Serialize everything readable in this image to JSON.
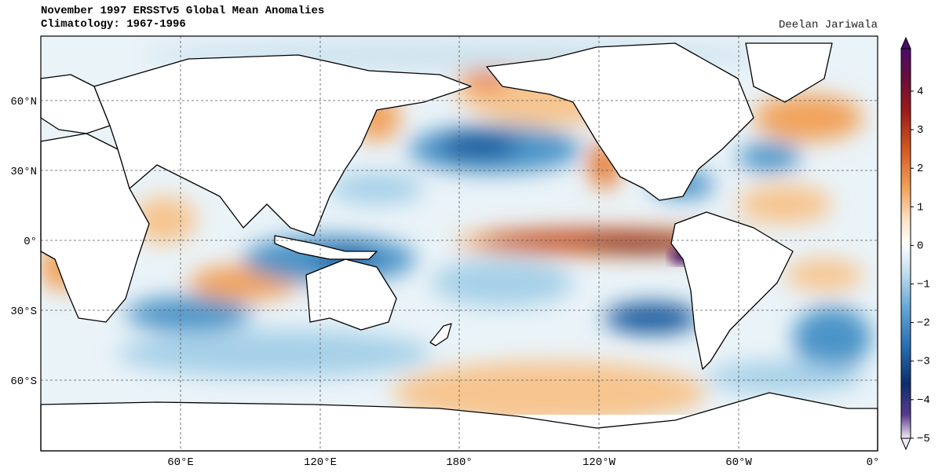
{
  "title": {
    "line1": "November 1997 ERSSTv5 Global Mean Anomalies",
    "line2": "Climatology: 1967-1996"
  },
  "author": "Deelan Jariwala",
  "axes": {
    "lat_labels": [
      "60°N",
      "30°N",
      "0°",
      "30°S",
      "60°S"
    ],
    "lon_labels": [
      "60°E",
      "120°E",
      "180°",
      "120°W",
      "60°W",
      "0°"
    ]
  },
  "colorbar": {
    "min": -5,
    "max": 4,
    "ticks": [
      "4",
      "3",
      "2",
      "1",
      "0",
      "−1",
      "−2",
      "−3",
      "−4",
      "−5"
    ],
    "colors": [
      "#4b0c6b",
      "#7a0b1e",
      "#b8321a",
      "#e87c2f",
      "#f7c58f",
      "#ffffff",
      "#a6d0e8",
      "#4b94c8",
      "#1e5b9e",
      "#0b2d64",
      "#e8e0ef"
    ]
  },
  "anomalies": {
    "warm_regions": [
      "Equatorial Eastern Pacific",
      "Peru coast",
      "Gulf of Alaska",
      "Western Indian Ocean",
      "North Atlantic"
    ],
    "cold_regions": [
      "Central North Pacific",
      "Western Pacific warm pool",
      "South Pacific",
      "South Indian Ocean",
      "Gulf of Mexico"
    ]
  }
}
